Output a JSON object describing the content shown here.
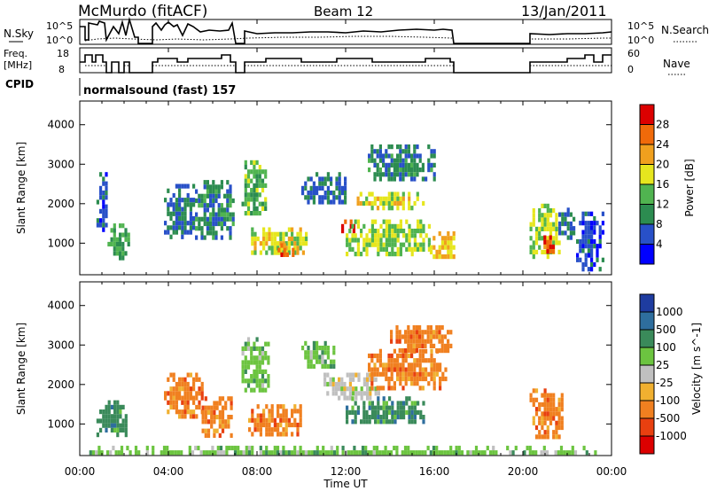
{
  "header": {
    "station": "McMurdo (fitACF)",
    "beam": "Beam 12",
    "date": "13/Jan/2011"
  },
  "top_panels": {
    "nsky_label": "N.Sky",
    "nsky_ticks": [
      "10^5",
      "10^0"
    ],
    "nsearch_label": "N.Search",
    "freq_label": "Freq.",
    "freq_unit": "[MHz]",
    "freq_ticks": [
      "18",
      "8"
    ],
    "nave_label": "Nave",
    "nave_ticks": [
      "60",
      "0"
    ],
    "cpid_label": "CPID",
    "cpid_text": "normalsound (fast) 157"
  },
  "x_axis": {
    "label": "Time UT",
    "ticks": [
      "00:00",
      "04:00",
      "08:00",
      "12:00",
      "16:00",
      "20:00",
      "00:00"
    ],
    "values": [
      0,
      4,
      8,
      12,
      16,
      20,
      24
    ]
  },
  "chart_data": [
    {
      "type": "heatmap",
      "quantity": "Power",
      "colorbar_label": "Power [dB]",
      "colorbar_ticks": [
        "4",
        "8",
        "12",
        "16",
        "20",
        "24",
        "28"
      ],
      "colorbar_values": [
        4,
        8,
        12,
        16,
        20,
        24,
        28
      ],
      "colorbar_range": [
        0,
        32
      ],
      "colormap": [
        "#0000ff",
        "#2850c8",
        "#2c8c50",
        "#50b450",
        "#e6e61e",
        "#f0a01e",
        "#f06a0a",
        "#dc0000"
      ],
      "xlabel": "Time UT",
      "ylabel": "Slant Range [km]",
      "xlim": [
        0,
        24
      ],
      "ylim": [
        200,
        4600
      ],
      "yticks": [
        "1000",
        "2000",
        "3000",
        "4000"
      ],
      "ytick_values": [
        1000,
        2000,
        3000,
        4000
      ],
      "regions": [
        {
          "t0": 0.75,
          "t1": 1.25,
          "r0": 1300,
          "r1": 2800,
          "level": 6
        },
        {
          "t0": 1.25,
          "t1": 2.15,
          "r0": 650,
          "r1": 1500,
          "level": 12
        },
        {
          "t0": 3.8,
          "t1": 5.1,
          "r0": 1200,
          "r1": 2500,
          "level": 8
        },
        {
          "t0": 5.2,
          "t1": 6.9,
          "r0": 1100,
          "r1": 2600,
          "level": 9
        },
        {
          "t0": 7.3,
          "t1": 8.4,
          "r0": 1800,
          "r1": 3100,
          "level": 14
        },
        {
          "t0": 7.6,
          "t1": 10.2,
          "r0": 700,
          "r1": 1400,
          "level": 18
        },
        {
          "t0": 8.8,
          "t1": 9.6,
          "r0": 700,
          "r1": 1000,
          "level": 26
        },
        {
          "t0": 10.0,
          "t1": 12.0,
          "r0": 2000,
          "r1": 2800,
          "level": 8
        },
        {
          "t0": 11.8,
          "t1": 12.6,
          "r0": 1300,
          "r1": 1600,
          "level": 30
        },
        {
          "t0": 12.0,
          "t1": 15.8,
          "r0": 700,
          "r1": 1600,
          "level": 16
        },
        {
          "t0": 12.5,
          "t1": 15.5,
          "r0": 1900,
          "r1": 2300,
          "level": 18
        },
        {
          "t0": 13.0,
          "t1": 16.0,
          "r0": 2600,
          "r1": 3500,
          "level": 9
        },
        {
          "t0": 15.8,
          "t1": 16.9,
          "r0": 600,
          "r1": 1300,
          "level": 20
        },
        {
          "t0": 20.3,
          "t1": 21.6,
          "r0": 700,
          "r1": 2000,
          "level": 16
        },
        {
          "t0": 20.8,
          "t1": 21.4,
          "r0": 800,
          "r1": 1200,
          "level": 26
        },
        {
          "t0": 21.6,
          "t1": 22.3,
          "r0": 1100,
          "r1": 1900,
          "level": 8
        },
        {
          "t0": 22.4,
          "t1": 23.6,
          "r0": 300,
          "r1": 1800,
          "level": 5
        }
      ]
    },
    {
      "type": "heatmap",
      "quantity": "Velocity",
      "colorbar_label": "Velocity [m s^-1]",
      "colorbar_ticks": [
        "1000",
        "500",
        "100",
        "25",
        "-25",
        "-100",
        "-500",
        "-1000"
      ],
      "colorbar_colors": [
        "#1e3ca0",
        "#2e6e9e",
        "#3a8a5a",
        "#6cc440",
        "#c0c0c0",
        "#f0b030",
        "#f08020",
        "#e84010",
        "#dc0000"
      ],
      "xlabel": "Time UT",
      "ylabel": "Slant Range [km]",
      "xlim": [
        0,
        24
      ],
      "ylim": [
        200,
        4600
      ],
      "yticks": [
        "1000",
        "2000",
        "3000",
        "4000"
      ],
      "ytick_values": [
        1000,
        2000,
        3000,
        4000
      ],
      "regions": [
        {
          "t0": 0.75,
          "t1": 2.1,
          "r0": 700,
          "r1": 1600,
          "bin": 2
        },
        {
          "t0": 3.8,
          "t1": 5.5,
          "r0": 1200,
          "r1": 2300,
          "bin": 6
        },
        {
          "t0": 5.5,
          "t1": 6.9,
          "r0": 700,
          "r1": 1700,
          "bin": 6
        },
        {
          "t0": 7.3,
          "t1": 8.5,
          "r0": 1800,
          "r1": 3200,
          "bin": 3
        },
        {
          "t0": 7.6,
          "t1": 10.0,
          "r0": 700,
          "r1": 1500,
          "bin": 6
        },
        {
          "t0": 10.0,
          "t1": 11.5,
          "r0": 2400,
          "r1": 3100,
          "bin": 3
        },
        {
          "t0": 11.0,
          "t1": 13.5,
          "r0": 1600,
          "r1": 2300,
          "bin": 4
        },
        {
          "t0": 12.0,
          "t1": 15.5,
          "r0": 1000,
          "r1": 1700,
          "bin": 2
        },
        {
          "t0": 13.0,
          "t1": 16.5,
          "r0": 1900,
          "r1": 2900,
          "bin": 6
        },
        {
          "t0": 14.0,
          "t1": 16.8,
          "r0": 2900,
          "r1": 3500,
          "bin": 6
        },
        {
          "t0": 20.3,
          "t1": 21.8,
          "r0": 700,
          "r1": 1900,
          "bin": 6
        },
        {
          "t0": 0.3,
          "t1": 23.5,
          "r0": 220,
          "r1": 450,
          "bin": 3
        }
      ]
    }
  ],
  "colors": {
    "axis": "#000000",
    "background": "#ffffff",
    "gs_trace": "#000000"
  }
}
